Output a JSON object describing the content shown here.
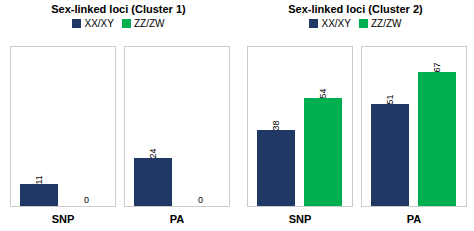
{
  "chart_data": [
    {
      "type": "bar",
      "title": "Sex-linked loci (Cluster 1)",
      "categories": [
        "SNP",
        "PA"
      ],
      "series": [
        {
          "name": "XX/XY",
          "color": "#1f3864",
          "values": [
            11,
            24
          ]
        },
        {
          "name": "ZZ/ZW",
          "color": "#00b050",
          "values": [
            0,
            0
          ]
        }
      ],
      "ylim": [
        0,
        80
      ],
      "grid": false,
      "legend": "top",
      "data_labels": true,
      "tick_labels": "x"
    },
    {
      "type": "bar",
      "title": "Sex-linked loci (Cluster 2)",
      "categories": [
        "SNP",
        "PA"
      ],
      "series": [
        {
          "name": "XX/XY",
          "color": "#1f3864",
          "values": [
            38,
            51
          ]
        },
        {
          "name": "ZZ/ZW",
          "color": "#00b050",
          "values": [
            54,
            67
          ]
        }
      ],
      "ylim": [
        0,
        80
      ],
      "grid": false,
      "legend": "top",
      "data_labels": true,
      "tick_labels": "x"
    }
  ]
}
